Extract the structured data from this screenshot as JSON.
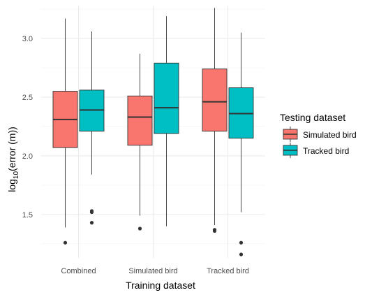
{
  "chart_data": {
    "type": "boxplot",
    "xlabel": "Training dataset",
    "ylabel": {
      "base": "log",
      "subscript": "10",
      "rest": "(error (m))"
    },
    "ylim": [
      1.13,
      3.28
    ],
    "yticks": [
      1.5,
      2.0,
      2.5,
      3.0
    ],
    "ytick_labels": [
      "1.5",
      "2.0",
      "2.5",
      "3.0"
    ],
    "grid": true,
    "legend_position": "right",
    "categories": [
      "Combined",
      "Simulated bird",
      "Tracked bird"
    ],
    "legend": {
      "title": "Testing dataset"
    },
    "series": [
      {
        "name": "Simulated bird",
        "color": "#F8766D",
        "boxes": [
          {
            "whisker_low": 1.39,
            "q1": 2.07,
            "median": 2.31,
            "q3": 2.55,
            "whisker_high": 3.17,
            "outliers": [
              1.26
            ]
          },
          {
            "whisker_low": 1.49,
            "q1": 2.09,
            "median": 2.33,
            "q3": 2.51,
            "whisker_high": 2.87,
            "outliers": [
              1.38
            ]
          },
          {
            "whisker_low": 1.41,
            "q1": 2.21,
            "median": 2.46,
            "q3": 2.74,
            "whisker_high": 3.26,
            "outliers": [
              1.36,
              1.37
            ]
          }
        ]
      },
      {
        "name": "Tracked bird",
        "color": "#00BFC4",
        "boxes": [
          {
            "whisker_low": 1.84,
            "q1": 2.21,
            "median": 2.39,
            "q3": 2.56,
            "whisker_high": 3.06,
            "outliers": [
              1.43,
              1.52,
              1.53
            ]
          },
          {
            "whisker_low": 1.4,
            "q1": 2.19,
            "median": 2.41,
            "q3": 2.79,
            "whisker_high": 3.19,
            "outliers": []
          },
          {
            "whisker_low": 1.52,
            "q1": 2.15,
            "median": 2.36,
            "q3": 2.58,
            "whisker_high": 3.05,
            "outliers": [
              1.16,
              1.26
            ]
          }
        ]
      }
    ]
  }
}
